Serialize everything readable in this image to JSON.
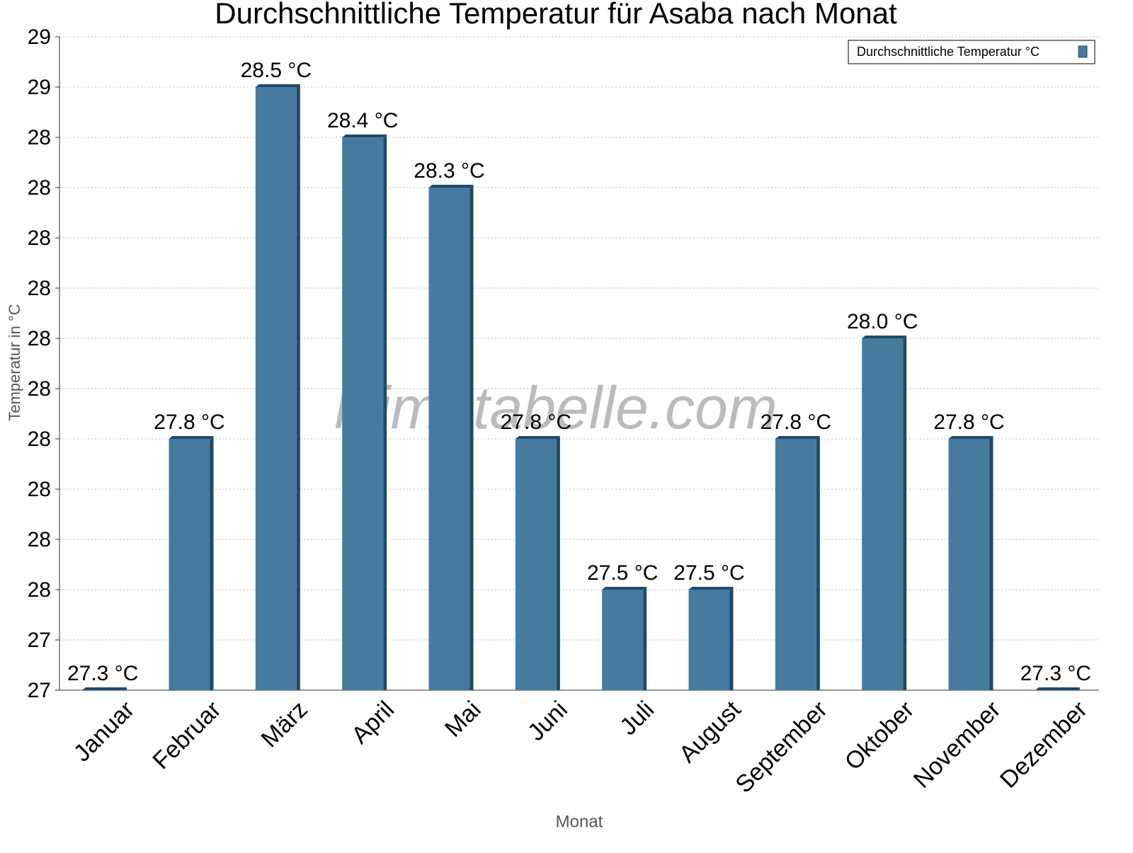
{
  "chart_data": {
    "type": "bar",
    "title": "Durchschnittliche Temperatur für Asaba nach Monat",
    "xlabel": "Monat",
    "ylabel": "Temperatur in °C",
    "watermark": "klimatabelle.com",
    "categories": [
      "Januar",
      "Februar",
      "März",
      "April",
      "Mai",
      "Juni",
      "Juli",
      "August",
      "September",
      "Oktober",
      "November",
      "Dezember"
    ],
    "series": [
      {
        "name": "Durchschnittliche Temperatur °C",
        "color": "#467b9e",
        "values": [
          27.3,
          27.8,
          28.5,
          28.4,
          28.3,
          27.8,
          27.5,
          27.5,
          27.8,
          28.0,
          27.8,
          27.3
        ],
        "value_labels": [
          "27.3 °C",
          "27.8 °C",
          "28.5 °C",
          "28.4 °C",
          "28.3 °C",
          "27.8 °C",
          "27.5 °C",
          "27.5 °C",
          "27.8 °C",
          "28.0 °C",
          "27.8 °C",
          "27.3 °C"
        ]
      }
    ],
    "ylim": [
      27.3,
      28.6
    ],
    "yticks": [
      {
        "value": 27.3,
        "label": "27"
      },
      {
        "value": 27.4,
        "label": "27"
      },
      {
        "value": 27.5,
        "label": "28"
      },
      {
        "value": 27.6,
        "label": "28"
      },
      {
        "value": 27.7,
        "label": "28"
      },
      {
        "value": 27.8,
        "label": "28"
      },
      {
        "value": 27.9,
        "label": "28"
      },
      {
        "value": 28.0,
        "label": "28"
      },
      {
        "value": 28.1,
        "label": "28"
      },
      {
        "value": 28.2,
        "label": "28"
      },
      {
        "value": 28.3,
        "label": "28"
      },
      {
        "value": 28.4,
        "label": "28"
      },
      {
        "value": 28.5,
        "label": "29"
      },
      {
        "value": 28.6,
        "label": "29"
      }
    ],
    "grid": true,
    "legend": "upper right"
  }
}
